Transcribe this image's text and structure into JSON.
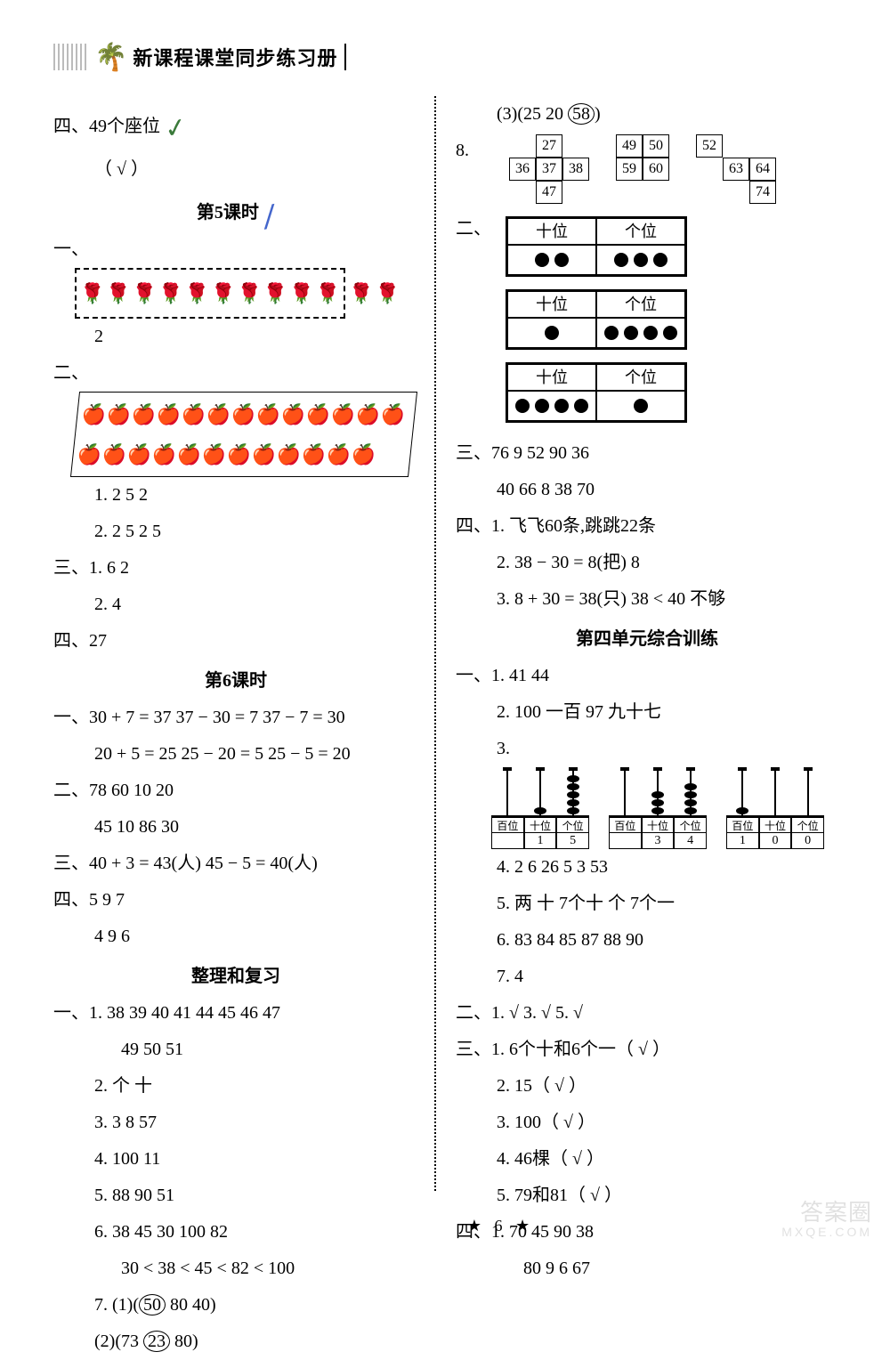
{
  "header": {
    "title": "新课程课堂同步练习册"
  },
  "colL": {
    "l1": "四、49个座位",
    "l2": "（ √ ）",
    "sec5": "第5课时",
    "l3_pre": "一、",
    "flowers_in": 10,
    "flowers_out": 2,
    "l4": "2",
    "l5_pre": "二、",
    "apples_r1": 13,
    "apples_r2": 12,
    "apple_sep_after": 5,
    "l6": "1. 2  5  2",
    "l7": "2. 2  5  2  5",
    "l8": "三、1. 6  2",
    "l9": "2. 4",
    "l10": "四、27",
    "sec6": "第6课时",
    "l11": "一、30 + 7 = 37   37 − 30 = 7   37 − 7 = 30",
    "l12": "20 + 5 = 25   25 − 20 = 5   25 − 5 = 20",
    "l13": "二、78  60  10  20",
    "l14": "45  10  86  30",
    "l15": "三、40 + 3 = 43(人)   45 − 5 = 40(人)",
    "l16": "四、5  9  7",
    "l17": "4  9  6",
    "secR": "整理和复习",
    "l18": "一、1. 38  39  40  41  44  45  46  47",
    "l19": "49  50  51",
    "l20": "2. 个  十",
    "l21": "3. 3  8  57",
    "l22": "4. 100   11",
    "l23": "5. 88  90  51",
    "l24": "6. 38  45  30  100  82",
    "l25": "30 < 38 < 45 < 82 < 100",
    "l26a": "7. (1)(",
    "l26b": "50",
    "l26c": "   80   40)",
    "l27a": "(2)(73   ",
    "l27b": "23",
    "l27c": "   80)"
  },
  "colR": {
    "l1a": "(3)(25   20   ",
    "l1b": "58",
    "l1c": ")",
    "l2": "8.",
    "grid1": [
      [
        "",
        "27",
        ""
      ],
      [
        "36",
        "37",
        "38"
      ],
      [
        "",
        "47",
        ""
      ]
    ],
    "grid2": [
      [
        "49",
        "50"
      ],
      [
        "59",
        "60"
      ]
    ],
    "grid3": [
      [
        "52",
        "",
        ""
      ],
      [
        "",
        "63",
        "64"
      ],
      [
        "",
        "",
        "74"
      ]
    ],
    "pv_label": "二、",
    "pv_h1": "十位",
    "pv_h2": "个位",
    "pv1": [
      2,
      3
    ],
    "pv2": [
      1,
      4
    ],
    "pv3": [
      4,
      1
    ],
    "l3": "三、76   9   52   90   36",
    "l4": "40   66   8   38   70",
    "l5": "四、1. 飞飞60条,跳跳22条",
    "l6": "2. 38 − 30 = 8(把)   8",
    "l7": "3. 8 + 30 = 38(只)   38 < 40   不够",
    "sec4": "第四单元综合训练",
    "l8": "一、1. 41   44",
    "l9": "2. 100   一百   97   九十七",
    "l10_pre": "3.",
    "abaci": [
      {
        "labels": [
          "百位",
          "十位",
          "个位"
        ],
        "vals": [
          "",
          "1",
          "5"
        ],
        "beads": [
          0,
          1,
          5
        ]
      },
      {
        "labels": [
          "百位",
          "十位",
          "个位"
        ],
        "vals": [
          "",
          "3",
          "4"
        ],
        "beads": [
          0,
          3,
          4
        ]
      },
      {
        "labels": [
          "百位",
          "十位",
          "个位"
        ],
        "vals": [
          "1",
          "0",
          "0"
        ],
        "beads": [
          1,
          0,
          0
        ]
      }
    ],
    "l11": "4. 2   6   26   5   3   53",
    "l12": "5. 两   十   7个十   个   7个一",
    "l13": "6. 83   84   85   87   88   90",
    "l14": "7. 4",
    "l15": "二、1. √   3. √   5. √",
    "l16": "三、1. 6个十和6个一（ √ ）",
    "l17": "2. 15（ √ ）",
    "l18": "3. 100（ √ ）",
    "l19": "4. 46棵（ √ ）",
    "l20": "5. 79和81（ √ ）",
    "l21": "四、1. 70   45   90   38",
    "l22": "80   9   6   67"
  },
  "footer": {
    "page": "6"
  },
  "watermark": {
    "main": "答案圈",
    "sub": "MXQE.COM"
  }
}
